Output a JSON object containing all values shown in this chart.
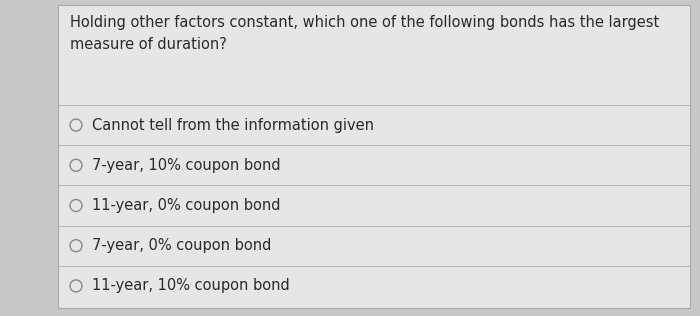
{
  "question": "Holding other factors constant, which one of the following bonds has the largest\nmeasure of duration?",
  "options": [
    "Cannot tell from the information given",
    "7-year, 10% coupon bond",
    "11-year, 0% coupon bond",
    "7-year, 0% coupon bond",
    "11-year, 10% coupon bond"
  ],
  "bg_color": "#c8c8c8",
  "card_color": "#e6e6e6",
  "text_color": "#2a2a2a",
  "divider_color": "#b8b8b8",
  "question_fontsize": 10.5,
  "option_fontsize": 10.5,
  "circle_color": "#888888"
}
